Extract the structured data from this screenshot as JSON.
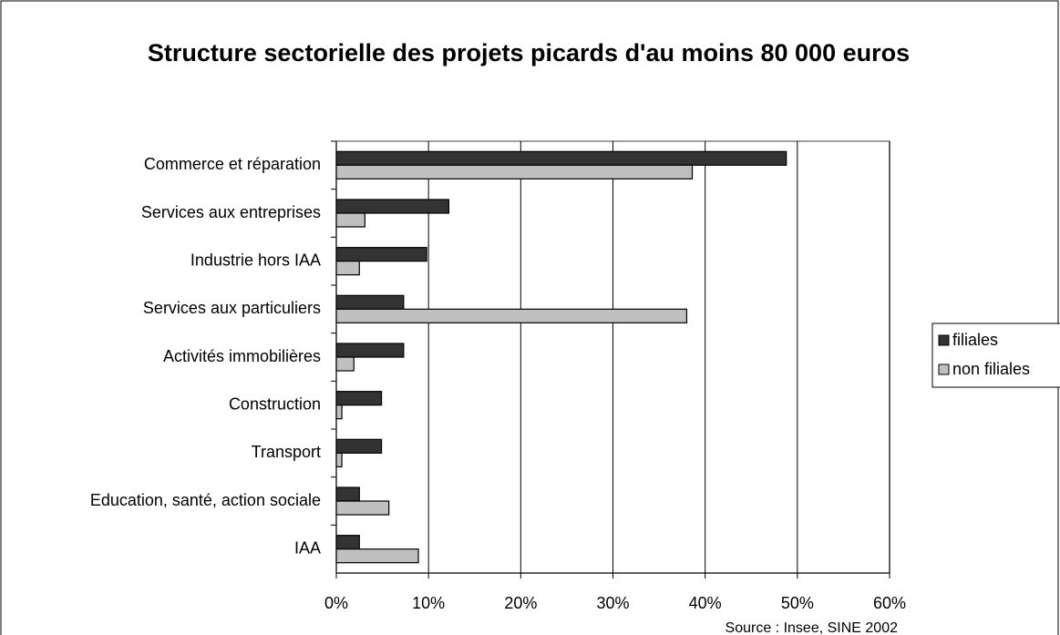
{
  "chart_data": {
    "type": "bar",
    "orientation": "horizontal",
    "title": "Structure sectorielle des projets picards d'au moins 80 000 euros",
    "source": "Source : Insee, SINE 2002",
    "categories": [
      "Commerce et réparation",
      "Services aux entreprises",
      "Industrie hors IAA",
      "Services aux particuliers",
      "Activités immobilières",
      "Construction",
      "Transport",
      "Education, santé, action sociale",
      "IAA"
    ],
    "series": [
      {
        "name": "filiales",
        "color": "#333333",
        "values": [
          48.8,
          12.2,
          9.8,
          7.3,
          7.3,
          4.9,
          4.9,
          2.5,
          2.5
        ]
      },
      {
        "name": "non filiales",
        "color": "#c0c0c0",
        "values": [
          38.6,
          3.1,
          2.5,
          38.0,
          1.9,
          0.6,
          0.6,
          5.7,
          8.9
        ]
      }
    ],
    "xlim": [
      0,
      60
    ],
    "xticks": [
      {
        "value": 0,
        "label": "0%"
      },
      {
        "value": 10,
        "label": "10%"
      },
      {
        "value": 20,
        "label": "20%"
      },
      {
        "value": 30,
        "label": "30%"
      },
      {
        "value": 40,
        "label": "40%"
      },
      {
        "value": 50,
        "label": "50%"
      },
      {
        "value": 60,
        "label": "60%"
      }
    ],
    "grid": true,
    "legend": "right"
  }
}
